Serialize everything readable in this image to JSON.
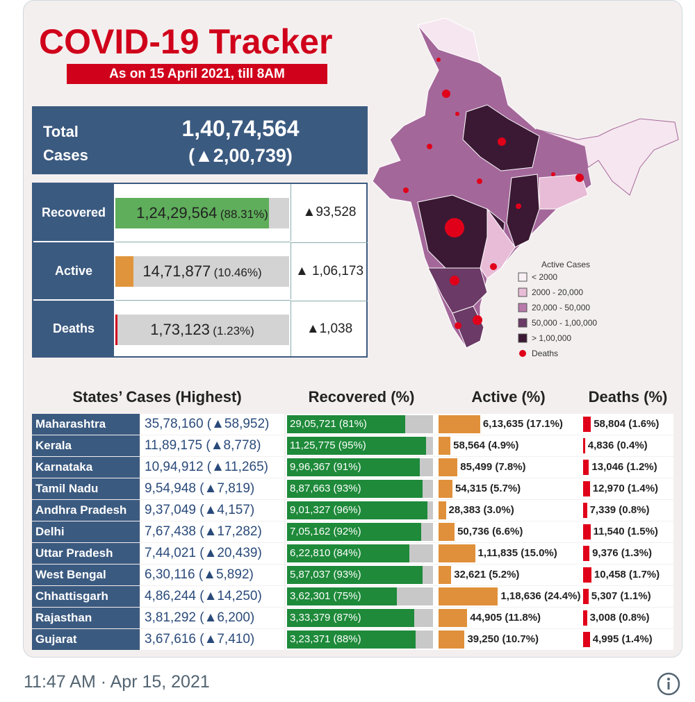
{
  "header": {
    "title": "COVID-19 Tracker",
    "subtitle": "As on 15 April 2021, till 8AM"
  },
  "total": {
    "label": "Total Cases",
    "value": "1,40,74,564",
    "change": "(▲2,00,739)"
  },
  "breakdown": [
    {
      "label": "Recovered",
      "value": "1,24,29,564",
      "share_label": "(88.31%)",
      "share": 88.31,
      "change": "▲93,528"
    },
    {
      "label": "Active",
      "value": "14,71,877",
      "share_label": "(10.46%)",
      "share": 10.46,
      "change": "▲ 1,06,173"
    },
    {
      "label": "Deaths",
      "value": "1,73,123",
      "share_label": "(1.23%)",
      "share": 1.23,
      "change": "▲1,038"
    }
  ],
  "legend": {
    "title": "Active Cases",
    "items": [
      "< 2000",
      "2000 - 20,000",
      "20,000 - 50,000",
      "50,000 - 1,00,000",
      "> 1,00,000",
      "Deaths"
    ]
  },
  "table": {
    "headers": [
      "States’ Cases (Highest)",
      "Recovered (%)",
      "Active (%)",
      "Deaths (%)"
    ],
    "rows": [
      {
        "state": "Maharashtra",
        "cases": "35,78,160 (▲58,952)",
        "recovered": {
          "label": "29,05,721 (81%)",
          "pct": 81
        },
        "active": {
          "label": "6,13,635 (17.1%)",
          "pct": 17.1
        },
        "deaths": {
          "label": "58,804 (1.6%)",
          "pct": 1.6
        }
      },
      {
        "state": "Kerala",
        "cases": "11,89,175 (▲8,778)",
        "recovered": {
          "label": "11,25,775 (95%)",
          "pct": 95
        },
        "active": {
          "label": "58,564 (4.9%)",
          "pct": 4.9
        },
        "deaths": {
          "label": "4,836 (0.4%)",
          "pct": 0.4
        }
      },
      {
        "state": "Karnataka",
        "cases": "10,94,912 (▲11,265)",
        "recovered": {
          "label": "9,96,367 (91%)",
          "pct": 91
        },
        "active": {
          "label": "85,499 (7.8%)",
          "pct": 7.8
        },
        "deaths": {
          "label": "13,046 (1.2%)",
          "pct": 1.2
        }
      },
      {
        "state": "Tamil Nadu",
        "cases": "9,54,948 (▲7,819)",
        "recovered": {
          "label": "8,87,663 (93%)",
          "pct": 93
        },
        "active": {
          "label": "54,315 (5.7%)",
          "pct": 5.7
        },
        "deaths": {
          "label": "12,970 (1.4%)",
          "pct": 1.4
        }
      },
      {
        "state": "Andhra Pradesh",
        "cases": "9,37,049 (▲4,157)",
        "recovered": {
          "label": "9,01,327 (96%)",
          "pct": 96
        },
        "active": {
          "label": "28,383 (3.0%)",
          "pct": 3.0
        },
        "deaths": {
          "label": "7,339 (0.8%)",
          "pct": 0.8
        }
      },
      {
        "state": "Delhi",
        "cases": "7,67,438 (▲17,282)",
        "recovered": {
          "label": "7,05,162 (92%)",
          "pct": 92
        },
        "active": {
          "label": "50,736 (6.6%)",
          "pct": 6.6
        },
        "deaths": {
          "label": "11,540 (1.5%)",
          "pct": 1.5
        }
      },
      {
        "state": "Uttar Pradesh",
        "cases": "7,44,021 (▲20,439)",
        "recovered": {
          "label": "6,22,810 (84%)",
          "pct": 84
        },
        "active": {
          "label": "1,11,835 (15.0%)",
          "pct": 15.0
        },
        "deaths": {
          "label": "9,376 (1.3%)",
          "pct": 1.3
        }
      },
      {
        "state": "West Bengal",
        "cases": "6,30,116 (▲5,892)",
        "recovered": {
          "label": "5,87,037 (93%)",
          "pct": 93
        },
        "active": {
          "label": "32,621 (5.2%)",
          "pct": 5.2
        },
        "deaths": {
          "label": "10,458 (1.7%)",
          "pct": 1.7
        }
      },
      {
        "state": "Chhattisgarh",
        "cases": "4,86,244 (▲14,250)",
        "recovered": {
          "label": "3,62,301 (75%)",
          "pct": 75
        },
        "active": {
          "label": "1,18,636 (24.4%)",
          "pct": 24.4
        },
        "deaths": {
          "label": "5,307 (1.1%)",
          "pct": 1.1
        }
      },
      {
        "state": "Rajasthan",
        "cases": "3,81,292 (▲6,200)",
        "recovered": {
          "label": "3,33,379 (87%)",
          "pct": 87
        },
        "active": {
          "label": "44,905 (11.8%)",
          "pct": 11.8
        },
        "deaths": {
          "label": "3,008 (0.8%)",
          "pct": 0.8
        }
      },
      {
        "state": "Gujarat",
        "cases": "3,67,616 (▲7,410)",
        "recovered": {
          "label": "3,23,371 (88%)",
          "pct": 88
        },
        "active": {
          "label": "39,250 (10.7%)",
          "pct": 10.7
        },
        "deaths": {
          "label": "4,995 (1.4%)",
          "pct": 1.4
        }
      }
    ]
  },
  "footer": {
    "timestamp": "11:47 AM · Apr 15, 2021"
  }
}
